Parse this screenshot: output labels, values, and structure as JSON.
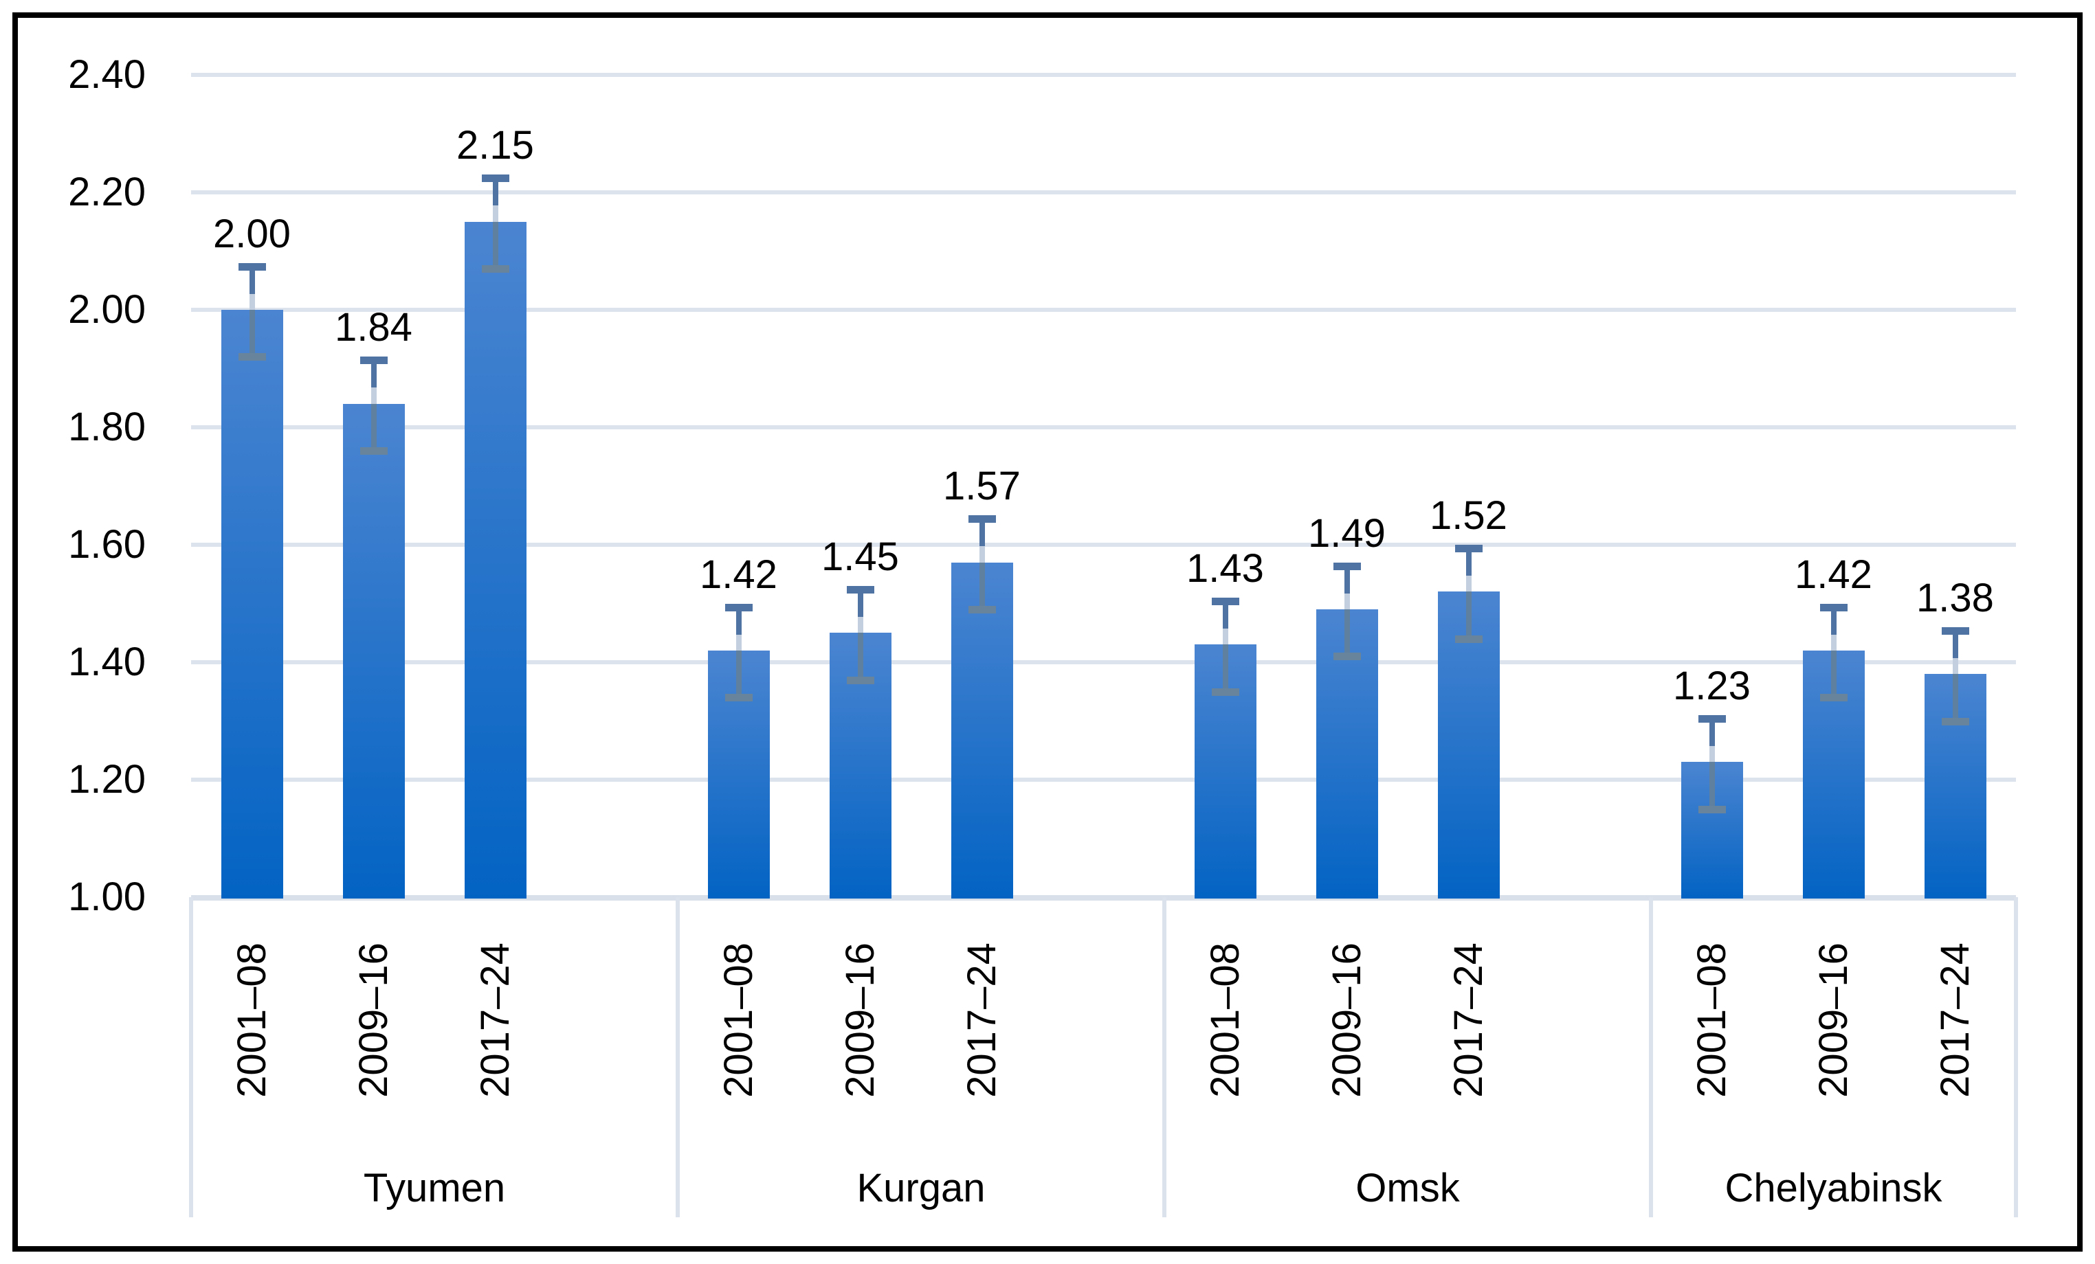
{
  "chart_data": {
    "type": "bar",
    "title": "",
    "groups": [
      {
        "name": "Tyumen",
        "periods": [
          "2001–08",
          "2009–16",
          "2017–24"
        ],
        "values": [
          2.0,
          1.84,
          2.15
        ],
        "labels": [
          "2.00",
          "1.84",
          "2.15"
        ]
      },
      {
        "name": "Kurgan",
        "periods": [
          "2001–08",
          "2009–16",
          "2017–24"
        ],
        "values": [
          1.42,
          1.45,
          1.57
        ],
        "labels": [
          "1.42",
          "1.45",
          "1.57"
        ]
      },
      {
        "name": "Omsk",
        "periods": [
          "2001–08",
          "2009–16",
          "2017–24"
        ],
        "values": [
          1.43,
          1.49,
          1.52
        ],
        "labels": [
          "1.43",
          "1.49",
          "1.52"
        ]
      },
      {
        "name": "Chelyabinsk",
        "periods": [
          "2001–08",
          "2009–16",
          "2017–24"
        ],
        "values": [
          1.23,
          1.42,
          1.38
        ],
        "labels": [
          "1.23",
          "1.42",
          "1.38"
        ]
      }
    ],
    "error_bar_plus_minus": 0.08,
    "y_axis": {
      "min": 1.0,
      "max": 2.4,
      "step": 0.2,
      "tick_labels": [
        "2.40",
        "2.20",
        "2.00",
        "1.80",
        "1.60",
        "1.40",
        "1.20",
        "1.00"
      ]
    },
    "xlabel": "",
    "ylabel": "",
    "grid": true,
    "legend_position": "none"
  },
  "colors": {
    "bar_gradient_top": "#4b85d1",
    "bar_gradient_bottom": "#0363c3",
    "gridline": "#dde3ed",
    "axis_line": "#d9e0ea",
    "divider": "#dce2ec",
    "error_cap_top": "#4f74a3",
    "error_cap_bottom": "#68839c",
    "error_stem_light": "#c3cede",
    "error_stem_in_bar": "#60809f",
    "text": "#000000",
    "border": "#000000"
  }
}
